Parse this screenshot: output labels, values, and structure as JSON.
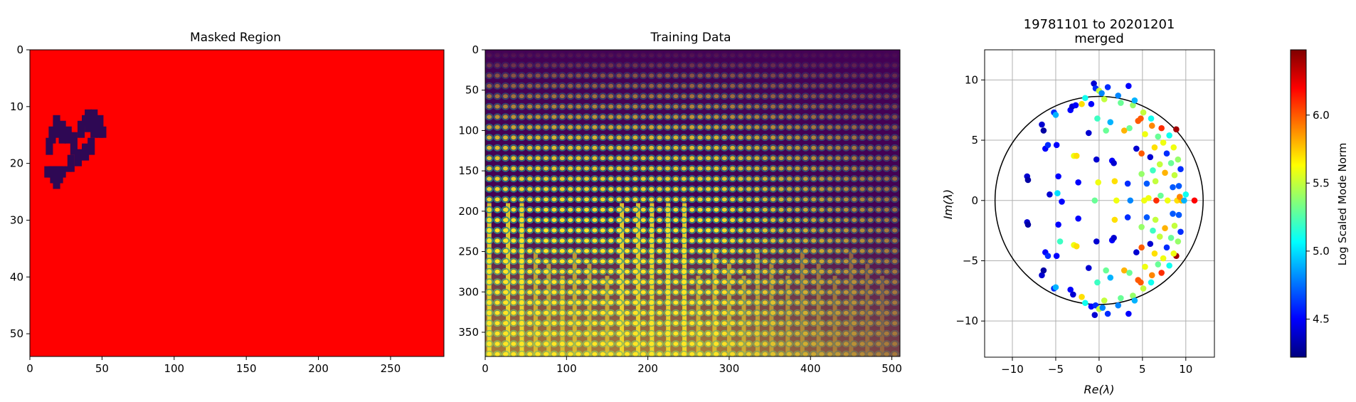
{
  "chart_data": [
    {
      "type": "heatmap",
      "title": "Masked Region",
      "xlabel": "",
      "ylabel": "",
      "xlim": [
        0,
        287
      ],
      "ylim": [
        54,
        0
      ],
      "x_ticks": [
        "0",
        "50",
        "100",
        "150",
        "200",
        "250"
      ],
      "y_ticks": [
        "0",
        "10",
        "20",
        "30",
        "40",
        "50"
      ],
      "background_color": "#ff0000",
      "mask_color": "#2e0854",
      "mask_cells": [
        [
          12,
          21,
          22
        ],
        [
          15,
          21,
          22
        ],
        [
          16,
          21,
          23
        ],
        [
          18,
          21,
          24
        ],
        [
          20,
          21,
          23
        ],
        [
          22,
          21,
          22
        ],
        [
          13,
          16,
          18
        ],
        [
          15,
          14,
          16
        ],
        [
          18,
          12,
          13
        ],
        [
          18,
          13,
          15
        ],
        [
          22,
          13,
          16
        ],
        [
          26,
          14,
          16
        ],
        [
          30,
          15,
          18
        ],
        [
          35,
          13,
          15
        ],
        [
          38,
          12,
          13
        ],
        [
          40,
          11,
          14
        ],
        [
          44,
          11,
          15
        ],
        [
          48,
          12,
          15
        ],
        [
          50,
          14,
          15
        ],
        [
          26,
          21,
          21
        ],
        [
          28,
          19,
          21
        ],
        [
          33,
          18,
          20
        ],
        [
          38,
          17,
          19
        ],
        [
          42,
          16,
          18
        ]
      ]
    },
    {
      "type": "heatmap",
      "title": "Training Data",
      "xlabel": "",
      "ylabel": "",
      "xlim": [
        0,
        510
      ],
      "ylim": [
        380,
        0
      ],
      "x_ticks": [
        "0",
        "100",
        "200",
        "300",
        "400",
        "500"
      ],
      "y_ticks": [
        "0",
        "50",
        "100",
        "150",
        "200",
        "250",
        "300",
        "350"
      ],
      "colormap": [
        "#440154",
        "#3b528b",
        "#21918c",
        "#5ec962",
        "#fde725"
      ]
    },
    {
      "type": "scatter",
      "title": "19781101 to 20201201",
      "subtitle": "merged",
      "xlabel": "Re(λ)",
      "ylabel": "Im(λ)",
      "xlim": [
        -13.2,
        13.3
      ],
      "ylim": [
        -13,
        12.5
      ],
      "x_ticks": [
        -10,
        -5,
        0,
        5,
        10
      ],
      "y_ticks": [
        -10,
        -5,
        0,
        5,
        10
      ],
      "grid": true,
      "circle_radius": 12,
      "colorbar": {
        "label": "Log Scaled Mode Norm",
        "range": [
          4.22,
          6.48
        ],
        "ticks": [
          4.5,
          5.0,
          5.5,
          6.0
        ],
        "tick_labels": [
          "4.5",
          "5.0",
          "5.5",
          "6.0"
        ],
        "colormap": [
          "#00007f",
          "#0000ff",
          "#007fff",
          "#00ffff",
          "#7fff7f",
          "#ffff00",
          "#ff7f00",
          "#ff0000",
          "#7f0000"
        ]
      },
      "points": [
        [
          -8.3,
          2.0,
          4.4
        ],
        [
          -8.2,
          1.7,
          4.3
        ],
        [
          -6.6,
          6.3,
          4.4
        ],
        [
          -6.4,
          5.8,
          4.3
        ],
        [
          -6.2,
          4.3,
          4.5
        ],
        [
          -5.9,
          4.6,
          4.6
        ],
        [
          -5.7,
          0.5,
          4.4
        ],
        [
          -5.2,
          7.3,
          4.6
        ],
        [
          -5.0,
          7.1,
          4.9
        ],
        [
          -4.9,
          4.6,
          4.5
        ],
        [
          -4.7,
          2.0,
          4.5
        ],
        [
          -4.8,
          0.6,
          5.0
        ],
        [
          -4.3,
          -0.1,
          4.5
        ],
        [
          -3.3,
          7.5,
          4.5
        ],
        [
          -3.1,
          7.8,
          4.4
        ],
        [
          -2.7,
          7.9,
          4.5
        ],
        [
          -2.9,
          3.7,
          5.6
        ],
        [
          -2.6,
          3.7,
          5.7
        ],
        [
          -2.4,
          1.5,
          4.5
        ],
        [
          -2.0,
          8.0,
          5.7
        ],
        [
          -1.6,
          8.5,
          5.1
        ],
        [
          -1.2,
          5.6,
          4.4
        ],
        [
          -0.9,
          8.0,
          4.5
        ],
        [
          -0.6,
          9.7,
          4.4
        ],
        [
          -0.4,
          9.3,
          4.6
        ],
        [
          -0.2,
          6.8,
          5.2
        ],
        [
          -0.3,
          3.4,
          4.4
        ],
        [
          -0.5,
          0.0,
          5.3
        ],
        [
          -0.1,
          1.5,
          5.6
        ],
        [
          0.0,
          9.1,
          5.5
        ],
        [
          0.3,
          8.9,
          4.8
        ],
        [
          0.6,
          8.4,
          5.5
        ],
        [
          0.8,
          5.8,
          5.3
        ],
        [
          1.0,
          9.4,
          4.6
        ],
        [
          1.3,
          6.5,
          4.9
        ],
        [
          1.5,
          3.3,
          4.5
        ],
        [
          1.7,
          3.1,
          4.4
        ],
        [
          1.8,
          1.6,
          5.7
        ],
        [
          2.0,
          0.0,
          5.6
        ],
        [
          2.2,
          8.7,
          4.8
        ],
        [
          2.5,
          8.1,
          5.3
        ],
        [
          2.9,
          5.8,
          5.8
        ],
        [
          3.3,
          1.4,
          4.6
        ],
        [
          3.4,
          9.5,
          4.5
        ],
        [
          3.5,
          6.0,
          5.3
        ],
        [
          3.6,
          0.0,
          4.8
        ],
        [
          3.9,
          7.9,
          5.4
        ],
        [
          4.1,
          8.3,
          4.9
        ],
        [
          4.3,
          4.3,
          4.4
        ],
        [
          4.5,
          6.6,
          6.0
        ],
        [
          4.8,
          6.8,
          6.0
        ],
        [
          4.9,
          3.9,
          6.0
        ],
        [
          4.9,
          2.2,
          5.4
        ],
        [
          5.1,
          7.3,
          5.5
        ],
        [
          5.2,
          0.0,
          5.6
        ],
        [
          5.3,
          5.5,
          5.6
        ],
        [
          5.5,
          1.4,
          4.7
        ],
        [
          5.7,
          0.2,
          5.6
        ],
        [
          5.9,
          3.6,
          4.4
        ],
        [
          6.0,
          6.8,
          5.1
        ],
        [
          6.1,
          6.2,
          5.9
        ],
        [
          6.2,
          2.5,
          5.2
        ],
        [
          6.4,
          4.4,
          5.7
        ],
        [
          6.5,
          1.6,
          5.5
        ],
        [
          6.6,
          0.0,
          6.1
        ],
        [
          6.8,
          5.3,
          5.3
        ],
        [
          7.0,
          3.0,
          5.5
        ],
        [
          7.2,
          6.0,
          6.1
        ],
        [
          7.1,
          0.4,
          5.3
        ],
        [
          7.4,
          4.8,
          5.6
        ],
        [
          7.6,
          2.3,
          5.8
        ],
        [
          7.8,
          3.9,
          4.6
        ],
        [
          7.9,
          0.0,
          5.6
        ],
        [
          8.1,
          5.4,
          5.1
        ],
        [
          8.3,
          3.1,
          5.3
        ],
        [
          8.5,
          1.1,
          4.7
        ],
        [
          8.6,
          4.4,
          5.6
        ],
        [
          8.7,
          2.1,
          5.5
        ],
        [
          8.9,
          5.9,
          6.4
        ],
        [
          9.0,
          0.0,
          5.7
        ],
        [
          9.1,
          3.4,
          5.4
        ],
        [
          9.2,
          1.2,
          4.7
        ],
        [
          9.4,
          2.6,
          4.6
        ],
        [
          9.5,
          0.0,
          5.8
        ],
        [
          9.8,
          0.0,
          4.9
        ],
        [
          10.0,
          0.5,
          5.1
        ],
        [
          11.0,
          0.0,
          6.2
        ],
        [
          9.3,
          0.3,
          5.9
        ],
        [
          8.9,
          -4.6,
          6.4
        ],
        [
          -8.3,
          -1.8,
          4.4
        ],
        [
          -8.2,
          -2.0,
          4.3
        ],
        [
          -6.6,
          -6.2,
          4.4
        ],
        [
          -6.4,
          -5.8,
          4.3
        ],
        [
          -6.2,
          -4.3,
          4.5
        ],
        [
          -5.9,
          -4.6,
          4.6
        ],
        [
          -5.2,
          -7.3,
          4.6
        ],
        [
          -5.0,
          -7.2,
          4.9
        ],
        [
          -4.9,
          -4.6,
          4.5
        ],
        [
          -4.7,
          -2.0,
          4.5
        ],
        [
          -4.5,
          -3.4,
          5.2
        ],
        [
          -3.3,
          -7.4,
          4.5
        ],
        [
          -3.0,
          -7.8,
          4.4
        ],
        [
          -2.9,
          -3.7,
          5.6
        ],
        [
          -2.6,
          -3.8,
          5.7
        ],
        [
          -2.4,
          -1.5,
          4.5
        ],
        [
          -2.0,
          -8.0,
          5.7
        ],
        [
          -1.6,
          -8.5,
          5.1
        ],
        [
          -1.2,
          -5.6,
          4.4
        ],
        [
          -0.9,
          -8.8,
          4.5
        ],
        [
          -0.5,
          -9.5,
          4.4
        ],
        [
          -0.4,
          -8.7,
          4.6
        ],
        [
          -0.2,
          -6.8,
          5.2
        ],
        [
          -0.3,
          -3.4,
          4.4
        ],
        [
          0.0,
          -9.0,
          5.5
        ],
        [
          0.4,
          -8.9,
          4.8
        ],
        [
          0.6,
          -8.3,
          5.5
        ],
        [
          0.8,
          -5.8,
          5.3
        ],
        [
          1.0,
          -9.4,
          4.6
        ],
        [
          1.3,
          -6.4,
          4.9
        ],
        [
          1.5,
          -3.3,
          4.5
        ],
        [
          1.7,
          -3.1,
          4.4
        ],
        [
          1.8,
          -1.6,
          5.7
        ],
        [
          2.2,
          -8.7,
          4.8
        ],
        [
          2.5,
          -8.1,
          5.3
        ],
        [
          2.9,
          -5.8,
          5.8
        ],
        [
          3.3,
          -1.4,
          4.6
        ],
        [
          3.4,
          -9.4,
          4.5
        ],
        [
          3.5,
          -6.0,
          5.3
        ],
        [
          3.9,
          -7.9,
          5.4
        ],
        [
          4.1,
          -8.3,
          4.9
        ],
        [
          4.3,
          -4.3,
          4.4
        ],
        [
          4.5,
          -6.6,
          6.0
        ],
        [
          4.8,
          -6.8,
          6.0
        ],
        [
          4.9,
          -3.9,
          6.0
        ],
        [
          4.9,
          -2.2,
          5.4
        ],
        [
          5.1,
          -7.3,
          5.5
        ],
        [
          5.3,
          -5.5,
          5.6
        ],
        [
          5.5,
          -1.4,
          4.7
        ],
        [
          5.9,
          -3.6,
          4.4
        ],
        [
          6.0,
          -6.8,
          5.1
        ],
        [
          6.1,
          -6.2,
          5.9
        ],
        [
          6.2,
          -2.5,
          5.2
        ],
        [
          6.4,
          -4.4,
          5.7
        ],
        [
          6.5,
          -1.6,
          5.5
        ],
        [
          6.8,
          -5.3,
          5.3
        ],
        [
          7.0,
          -3.0,
          5.5
        ],
        [
          7.2,
          -6.0,
          6.1
        ],
        [
          7.4,
          -4.8,
          5.6
        ],
        [
          7.6,
          -2.3,
          5.8
        ],
        [
          7.8,
          -3.9,
          4.6
        ],
        [
          8.1,
          -5.4,
          5.1
        ],
        [
          8.3,
          -3.1,
          5.3
        ],
        [
          8.5,
          -1.1,
          4.7
        ],
        [
          8.6,
          -4.4,
          5.6
        ],
        [
          8.7,
          -2.1,
          5.5
        ],
        [
          9.1,
          -3.4,
          5.4
        ],
        [
          9.2,
          -1.2,
          4.7
        ],
        [
          9.4,
          -2.6,
          4.6
        ]
      ]
    }
  ]
}
